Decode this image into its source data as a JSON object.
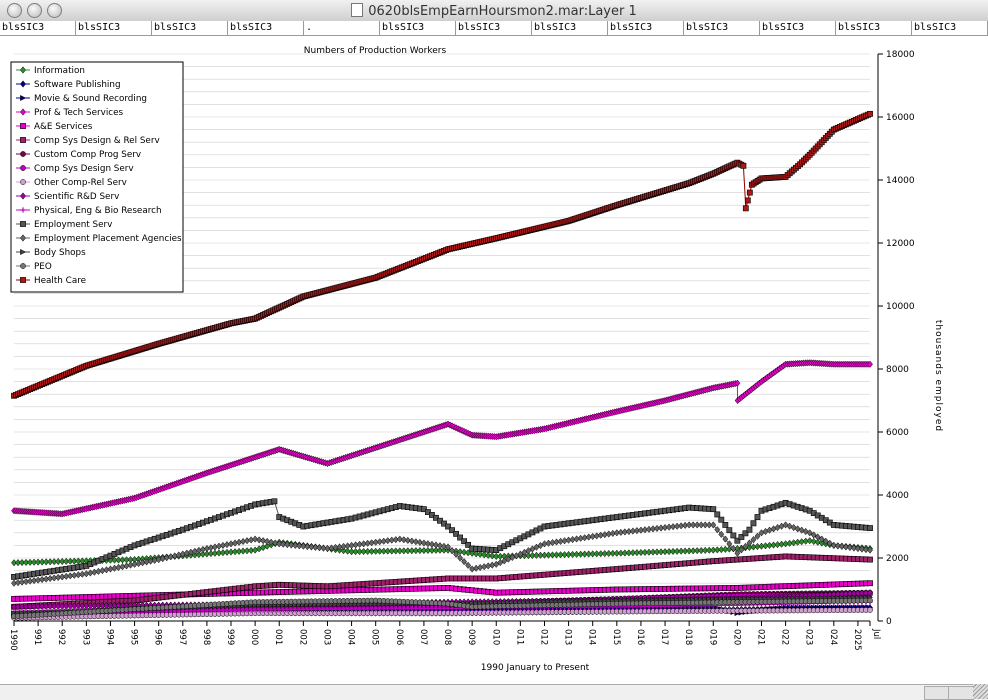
{
  "window": {
    "title": "0620blsEmpEarnHoursmon2.mar:Layer 1"
  },
  "columns": [
    "blsSIC3",
    "blsSIC3",
    "blsSIC3",
    "blsSIC3",
    ".",
    "blsSIC3",
    "blsSIC3",
    "blsSIC3",
    "blsSIC3",
    "blsSIC3",
    "blsSIC3",
    "blsSIC3",
    "blsSIC3"
  ],
  "chart_data": {
    "type": "line",
    "title": "Numbers of Production Workers",
    "xlabel": "1990 January to Present",
    "ylabel": "thousands employed",
    "ylim": [
      0,
      18000
    ],
    "yticks": [
      "0",
      "2000",
      "4000",
      "6000",
      "8000",
      "10000",
      "12000",
      "14000",
      "16000",
      "18000"
    ],
    "xticks": [
      "1990",
      "1991",
      "1992",
      "1993",
      "1994",
      "1995",
      "1996",
      "1997",
      "1998",
      "1999",
      "2000",
      "2001",
      "2002",
      "2003",
      "2004",
      "2005",
      "2006",
      "2007",
      "2008",
      "2009",
      "2010",
      "2011",
      "2012",
      "2013",
      "2014",
      "2015",
      "2016",
      "2017",
      "2018",
      "2019",
      "2020",
      "2021",
      "2022",
      "2023",
      "2024",
      "2025",
      "Jul"
    ],
    "grid": true,
    "legend_position": "top-left",
    "x_start": 1990.0,
    "x_end": 2025.5,
    "series": [
      {
        "name": "Information",
        "color": "#2e8b2e",
        "marker": "diamond",
        "points": [
          [
            1990,
            1850
          ],
          [
            1995,
            1950
          ],
          [
            2000,
            2250
          ],
          [
            2001,
            2500
          ],
          [
            2004,
            2200
          ],
          [
            2008,
            2250
          ],
          [
            2010,
            2050
          ],
          [
            2015,
            2150
          ],
          [
            2019,
            2250
          ],
          [
            2020,
            2300
          ],
          [
            2022,
            2450
          ],
          [
            2023,
            2550
          ],
          [
            2024,
            2400
          ],
          [
            2025.5,
            2300
          ]
        ]
      },
      {
        "name": "Software Publishing",
        "color": "#00008b",
        "marker": "diamond",
        "points": [
          [
            1990,
            120
          ],
          [
            2000,
            260
          ],
          [
            2008,
            250
          ],
          [
            2015,
            310
          ],
          [
            2020,
            370
          ],
          [
            2025.5,
            420
          ]
        ]
      },
      {
        "name": "Movie & Sound Recording",
        "color": "#000080",
        "marker": "triangle",
        "points": [
          [
            1990,
            240
          ],
          [
            2000,
            380
          ],
          [
            2008,
            380
          ],
          [
            2015,
            400
          ],
          [
            2019,
            440
          ],
          [
            2020,
            250
          ],
          [
            2022,
            430
          ],
          [
            2025.5,
            420
          ]
        ]
      },
      {
        "name": "Prof & Tech Services",
        "color": "#e600c8",
        "marker": "diamond",
        "points": [
          [
            1990,
            3500
          ],
          [
            1992,
            3400
          ],
          [
            1995,
            3900
          ],
          [
            1998,
            4700
          ],
          [
            2000,
            5200
          ],
          [
            2001,
            5450
          ],
          [
            2003,
            5000
          ],
          [
            2005,
            5500
          ],
          [
            2008,
            6250
          ],
          [
            2009,
            5900
          ],
          [
            2010,
            5850
          ],
          [
            2012,
            6100
          ],
          [
            2015,
            6650
          ],
          [
            2017,
            7000
          ],
          [
            2019,
            7400
          ],
          [
            2020,
            7550
          ],
          [
            2020.01,
            7000
          ],
          [
            2021,
            7600
          ],
          [
            2022,
            8150
          ],
          [
            2023,
            8200
          ],
          [
            2024,
            8150
          ],
          [
            2025.5,
            8150
          ]
        ]
      },
      {
        "name": "A&E Services",
        "color": "#e600c8",
        "marker": "square",
        "points": [
          [
            1990,
            700
          ],
          [
            2000,
            900
          ],
          [
            2008,
            1050
          ],
          [
            2010,
            900
          ],
          [
            2015,
            1000
          ],
          [
            2020,
            1050
          ],
          [
            2025.5,
            1200
          ]
        ]
      },
      {
        "name": "Comp Sys Design & Rel Serv",
        "color": "#a0206a",
        "marker": "square",
        "points": [
          [
            1990,
            450
          ],
          [
            1995,
            650
          ],
          [
            2000,
            1100
          ],
          [
            2001,
            1150
          ],
          [
            2003,
            1100
          ],
          [
            2008,
            1350
          ],
          [
            2010,
            1350
          ],
          [
            2015,
            1650
          ],
          [
            2019,
            1900
          ],
          [
            2022,
            2050
          ],
          [
            2025.5,
            1950
          ]
        ]
      },
      {
        "name": "Custom Comp Prog Serv",
        "color": "#7a0050",
        "marker": "circle",
        "points": [
          [
            1990,
            200
          ],
          [
            2000,
            450
          ],
          [
            2008,
            550
          ],
          [
            2015,
            700
          ],
          [
            2020,
            850
          ],
          [
            2025.5,
            900
          ]
        ]
      },
      {
        "name": "Comp Sys Design Serv",
        "color": "#c000c0",
        "marker": "circle",
        "points": [
          [
            1990,
            150
          ],
          [
            2000,
            400
          ],
          [
            2008,
            500
          ],
          [
            2015,
            700
          ],
          [
            2020,
            800
          ],
          [
            2025.5,
            850
          ]
        ]
      },
      {
        "name": "Other Comp-Rel Serv",
        "color": "#d0a0d0",
        "marker": "circle",
        "points": [
          [
            1990,
            100
          ],
          [
            2000,
            250
          ],
          [
            2008,
            250
          ],
          [
            2015,
            300
          ],
          [
            2025.5,
            350
          ]
        ]
      },
      {
        "name": "Scientific R&D Serv",
        "color": "#a000a0",
        "marker": "diamond",
        "points": [
          [
            1990,
            450
          ],
          [
            1995,
            500
          ],
          [
            2000,
            520
          ],
          [
            2008,
            600
          ],
          [
            2015,
            650
          ],
          [
            2020,
            700
          ],
          [
            2025.5,
            900
          ]
        ]
      },
      {
        "name": "Physical, Eng & Bio Research",
        "color": "#c000c0",
        "marker": "plus",
        "points": [
          [
            1990,
            300
          ],
          [
            2000,
            350
          ],
          [
            2008,
            400
          ],
          [
            2015,
            450
          ],
          [
            2020,
            500
          ],
          [
            2025.5,
            600
          ]
        ]
      },
      {
        "name": "Employment Serv",
        "color": "#555555",
        "marker": "square",
        "points": [
          [
            1990,
            1400
          ],
          [
            1993,
            1750
          ],
          [
            1995,
            2400
          ],
          [
            1997,
            2900
          ],
          [
            2000,
            3700
          ],
          [
            2000.8,
            3800
          ],
          [
            2001,
            3300
          ],
          [
            2002,
            3000
          ],
          [
            2004,
            3250
          ],
          [
            2006,
            3650
          ],
          [
            2007,
            3550
          ],
          [
            2008,
            3000
          ],
          [
            2009,
            2300
          ],
          [
            2010,
            2250
          ],
          [
            2012,
            3000
          ],
          [
            2015,
            3300
          ],
          [
            2018,
            3600
          ],
          [
            2019,
            3550
          ],
          [
            2020,
            2550
          ],
          [
            2020.5,
            2900
          ],
          [
            2021,
            3500
          ],
          [
            2022,
            3750
          ],
          [
            2023,
            3500
          ],
          [
            2024,
            3050
          ],
          [
            2025.5,
            2950
          ]
        ]
      },
      {
        "name": "Employment Placement Agencies",
        "color": "#666666",
        "marker": "diamond",
        "points": [
          [
            1990,
            1200
          ],
          [
            1993,
            1500
          ],
          [
            1996,
            1950
          ],
          [
            1998,
            2300
          ],
          [
            2000,
            2600
          ],
          [
            2001,
            2450
          ],
          [
            2003,
            2300
          ],
          [
            2006,
            2600
          ],
          [
            2008,
            2350
          ],
          [
            2009,
            1650
          ],
          [
            2010,
            1800
          ],
          [
            2012,
            2450
          ],
          [
            2015,
            2800
          ],
          [
            2018,
            3050
          ],
          [
            2019,
            3050
          ],
          [
            2020,
            2150
          ],
          [
            2021,
            2800
          ],
          [
            2022,
            3050
          ],
          [
            2023,
            2800
          ],
          [
            2024,
            2400
          ],
          [
            2025.5,
            2250
          ]
        ]
      },
      {
        "name": "Body Shops",
        "color": "#444444",
        "marker": "triangle",
        "points": [
          [
            1990,
            250
          ],
          [
            2000,
            500
          ],
          [
            2008,
            550
          ],
          [
            2015,
            650
          ],
          [
            2020,
            700
          ],
          [
            2025.5,
            750
          ]
        ]
      },
      {
        "name": "PEO",
        "color": "#777777",
        "marker": "circle",
        "points": [
          [
            1990,
            150
          ],
          [
            2000,
            600
          ],
          [
            2005,
            650
          ],
          [
            2008,
            550
          ],
          [
            2009,
            450
          ],
          [
            2015,
            550
          ],
          [
            2020,
            600
          ],
          [
            2025.5,
            650
          ]
        ]
      },
      {
        "name": "Health Care",
        "color": "#8b0000",
        "fill": "#b01818",
        "marker": "square",
        "points": [
          [
            1990,
            7150
          ],
          [
            1993,
            8100
          ],
          [
            1996,
            8800
          ],
          [
            1999,
            9450
          ],
          [
            2000,
            9600
          ],
          [
            2002,
            10300
          ],
          [
            2005,
            10900
          ],
          [
            2008,
            11800
          ],
          [
            2010,
            12150
          ],
          [
            2013,
            12700
          ],
          [
            2015,
            13200
          ],
          [
            2018,
            13900
          ],
          [
            2019,
            14200
          ],
          [
            2020,
            14550
          ],
          [
            2020.25,
            14450
          ],
          [
            2020.35,
            13100
          ],
          [
            2020.6,
            13850
          ],
          [
            2021,
            14050
          ],
          [
            2022,
            14100
          ],
          [
            2022.6,
            14500
          ],
          [
            2023,
            14800
          ],
          [
            2024,
            15600
          ],
          [
            2025.5,
            16100
          ]
        ]
      }
    ]
  }
}
